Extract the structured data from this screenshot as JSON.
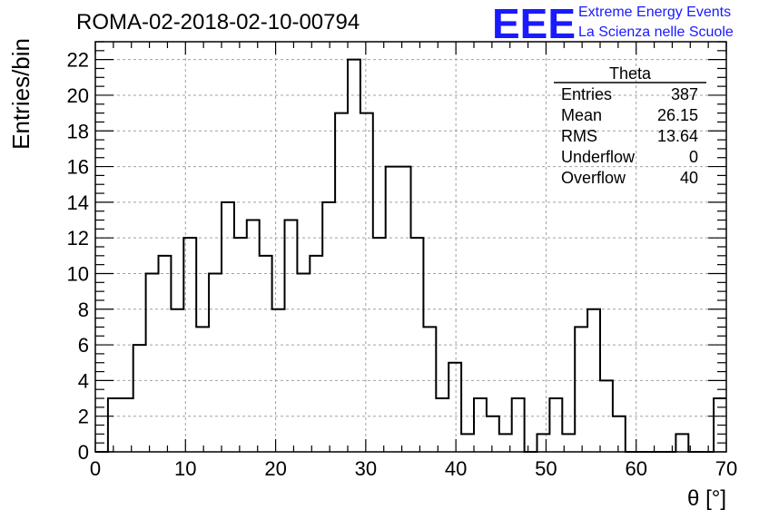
{
  "header": {
    "title": "ROMA-02-2018-02-10-00794",
    "logo_text": "EEE",
    "logo_line1": "Extreme Energy Events",
    "logo_line2": "La Scienza nelle Scuole",
    "logo_color": "#1a1aff"
  },
  "stats": {
    "title": "Theta",
    "rows": [
      {
        "label": "Entries",
        "value": "387"
      },
      {
        "label": "Mean",
        "value": "26.15"
      },
      {
        "label": "RMS",
        "value": "13.64"
      },
      {
        "label": "Underflow",
        "value": "0"
      },
      {
        "label": "Overflow",
        "value": "40"
      }
    ]
  },
  "chart_data": {
    "type": "bar",
    "title": "ROMA-02-2018-02-10-00794",
    "xlabel": "θ [°]",
    "ylabel": "Entries/bin",
    "xlim": [
      0,
      70
    ],
    "ylim": [
      0,
      23
    ],
    "grid": true,
    "bin_width": 1.4,
    "x_ticks": [
      0,
      10,
      20,
      30,
      40,
      50,
      60,
      70
    ],
    "y_ticks": [
      0,
      2,
      4,
      6,
      8,
      10,
      12,
      14,
      16,
      18,
      20,
      22
    ],
    "bin_edges_start": 0,
    "counts": [
      0,
      3,
      3,
      6,
      10,
      11,
      8,
      12,
      7,
      10,
      14,
      12,
      13,
      11,
      8,
      13,
      10,
      11,
      14,
      19,
      22,
      19,
      12,
      16,
      16,
      12,
      7,
      3,
      5,
      1,
      3,
      2,
      1,
      3,
      0,
      1,
      3,
      1,
      7,
      8,
      4,
      2,
      0,
      0,
      0,
      0,
      1,
      0,
      0,
      3
    ]
  }
}
